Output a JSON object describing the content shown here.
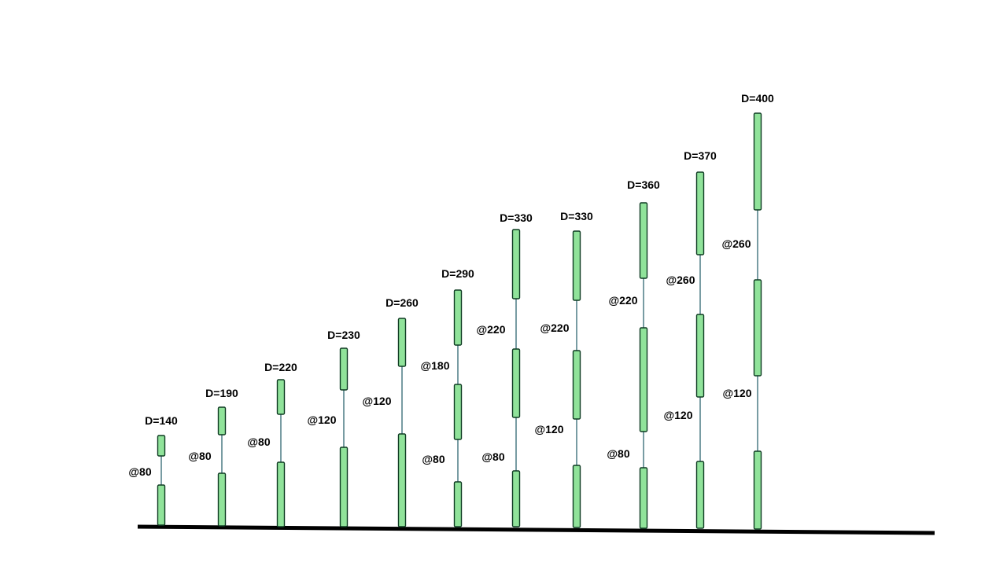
{
  "piles": [
    {
      "label": "D=140",
      "spacings": [
        "@80"
      ]
    },
    {
      "label": "D=190",
      "spacings": [
        "@80"
      ]
    },
    {
      "label": "D=220",
      "spacings": [
        "@80"
      ]
    },
    {
      "label": "D=230",
      "spacings": [
        "@120"
      ]
    },
    {
      "label": "D=260",
      "spacings": [
        "@120"
      ]
    },
    {
      "label": "D=290",
      "spacings": [
        "@80",
        "@180"
      ]
    },
    {
      "label": "D=330",
      "spacings": [
        "@80",
        "@220"
      ]
    },
    {
      "label": "D=330",
      "spacings": [
        "@120",
        "@220"
      ]
    },
    {
      "label": "D=360",
      "spacings": [
        "@80",
        "@220"
      ]
    },
    {
      "label": "D=370",
      "spacings": [
        "@120",
        "@260"
      ]
    },
    {
      "label": "D=400",
      "spacings": [
        "@120",
        "@260"
      ]
    }
  ],
  "colors": {
    "segment_fill": "#90e39a",
    "segment_stroke": "#0e3b22",
    "connector": "#1f5a66",
    "ground": "#000000"
  }
}
